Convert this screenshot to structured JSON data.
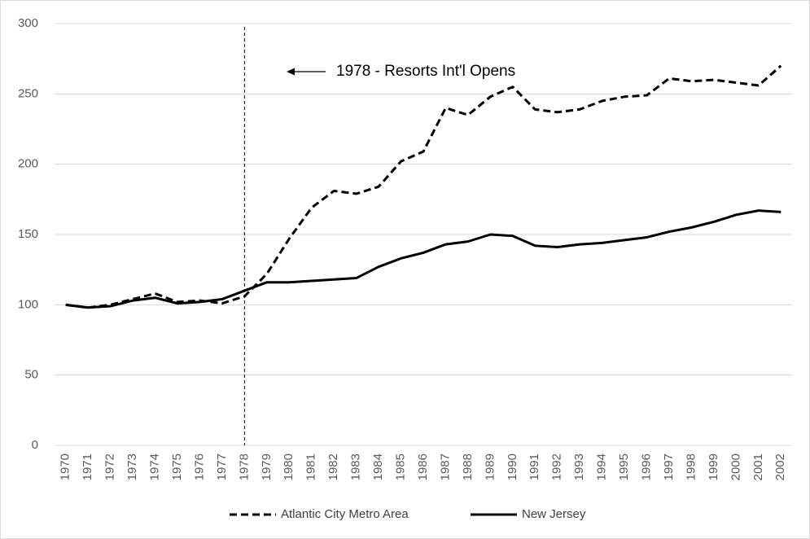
{
  "chart_data": {
    "type": "line",
    "categories": [
      "1970",
      "1971",
      "1972",
      "1973",
      "1974",
      "1975",
      "1976",
      "1977",
      "1978",
      "1979",
      "1980",
      "1981",
      "1982",
      "1983",
      "1984",
      "1985",
      "1986",
      "1987",
      "1988",
      "1989",
      "1990",
      "1991",
      "1992",
      "1993",
      "1994",
      "1995",
      "1996",
      "1997",
      "1998",
      "1999",
      "2000",
      "2001",
      "2002"
    ],
    "series": [
      {
        "name": "Atlantic City Metro Area",
        "color": "#000000",
        "dash": "dashed",
        "values": [
          100,
          98,
          100,
          104,
          108,
          102,
          103,
          101,
          106,
          122,
          147,
          169,
          181,
          179,
          184,
          202,
          209,
          240,
          235,
          248,
          255,
          239,
          237,
          239,
          245,
          248,
          249,
          261,
          259,
          260,
          258,
          256,
          270
        ]
      },
      {
        "name": "New Jersey",
        "color": "#000000",
        "dash": "solid",
        "values": [
          100,
          98,
          99,
          103,
          105,
          101,
          102,
          104,
          110,
          116,
          116,
          117,
          118,
          119,
          127,
          133,
          137,
          143,
          145,
          150,
          149,
          142,
          141,
          143,
          144,
          146,
          148,
          152,
          155,
          159,
          164,
          167,
          166
        ]
      }
    ],
    "ylim": [
      0,
      300
    ],
    "yticks": [
      0,
      50,
      100,
      150,
      200,
      250,
      300
    ],
    "grid": true,
    "legend": "bottom",
    "annotation": {
      "text": "1978 - Resorts Int'l Opens",
      "x": "1978"
    }
  }
}
